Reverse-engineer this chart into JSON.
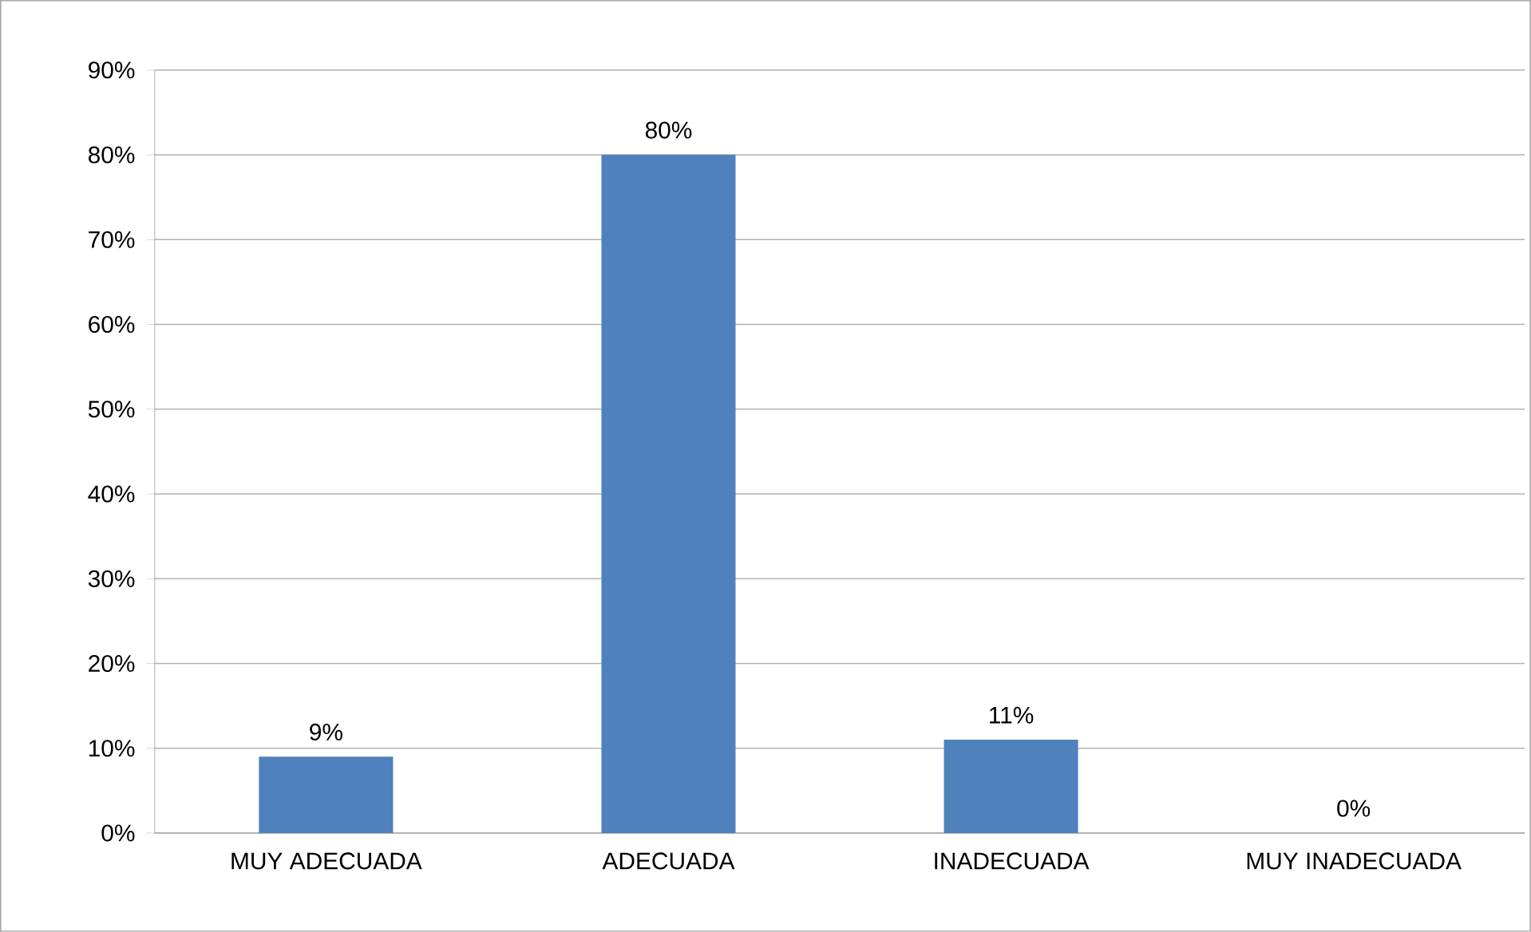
{
  "chart_data": {
    "type": "bar",
    "categories": [
      "MUY ADECUADA",
      "ADECUADA",
      "INADECUADA",
      "MUY INADECUADA"
    ],
    "values": [
      9,
      80,
      11,
      0
    ],
    "value_labels": [
      "9%",
      "80%",
      "11%",
      "0%"
    ],
    "color": "#4f81bd",
    "ylim": [
      0,
      90
    ],
    "yticks": [
      {
        "value": 0,
        "label": "0%"
      },
      {
        "value": 10,
        "label": "10%"
      },
      {
        "value": 20,
        "label": "20%"
      },
      {
        "value": 30,
        "label": "30%"
      },
      {
        "value": 40,
        "label": "40%"
      },
      {
        "value": 50,
        "label": "50%"
      },
      {
        "value": 60,
        "label": "60%"
      },
      {
        "value": 70,
        "label": "70%"
      },
      {
        "value": 80,
        "label": "80%"
      },
      {
        "value": 90,
        "label": "90%"
      }
    ],
    "grid": "y"
  }
}
